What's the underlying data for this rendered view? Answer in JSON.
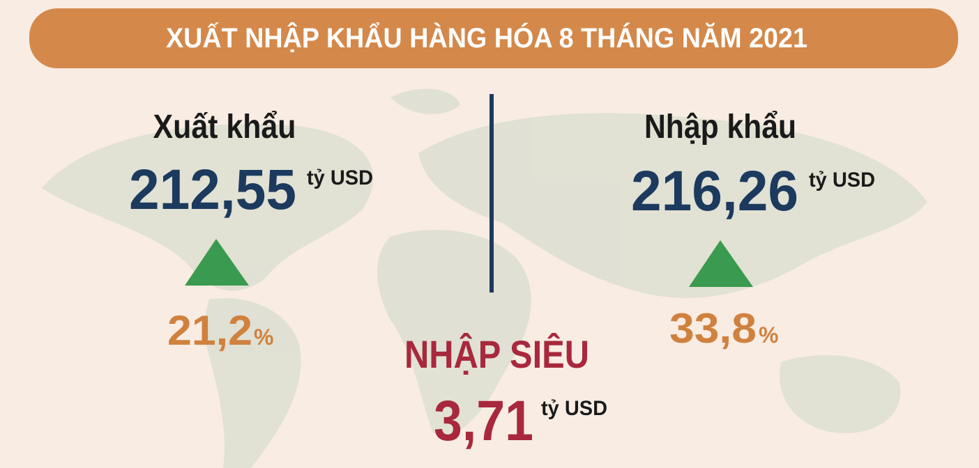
{
  "header": {
    "title": "XUẤT NHẬP KHẨU HÀNG HÓA  8 THÁNG NĂM 2021"
  },
  "export": {
    "label": "Xuất khẩu",
    "value": "212,55",
    "unit": "tỷ USD",
    "growth": "21,2",
    "growth_unit": "%"
  },
  "import": {
    "label": "Nhập khẩu",
    "value": "216,26",
    "unit": "tỷ USD",
    "growth": "33,8",
    "growth_unit": "%"
  },
  "deficit": {
    "label": "NHẬP SIÊU",
    "value": "3,71",
    "unit": "tỷ USD"
  }
}
